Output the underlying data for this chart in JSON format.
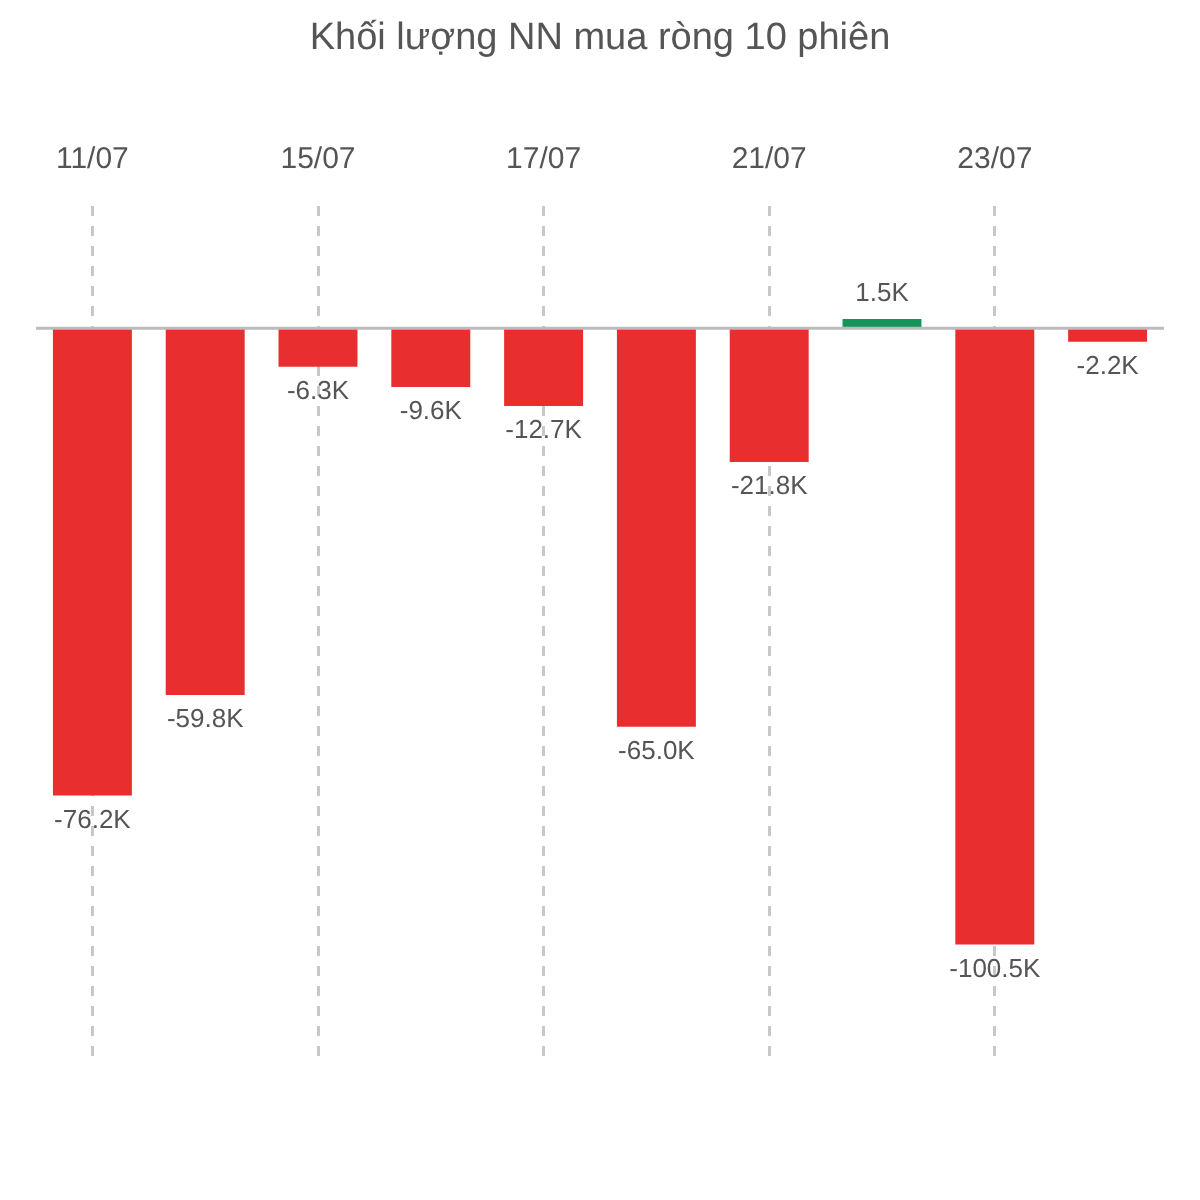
{
  "chart_data": {
    "type": "bar",
    "title": "Khối lượng NN mua ròng 10 phiên",
    "categories": [
      "11/07",
      null,
      "15/07",
      null,
      "17/07",
      null,
      "21/07",
      null,
      "23/07",
      null
    ],
    "values": [
      -76.2,
      -59.8,
      -6.3,
      -9.6,
      -12.7,
      -65.0,
      -21.8,
      1.5,
      -100.5,
      -2.2
    ],
    "colors": [
      "#e82e2e",
      "#e82e2e",
      "#e82e2e",
      "#e82e2e",
      "#e82e2e",
      "#e82e2e",
      "#e82e2e",
      "#16955a",
      "#e82e2e",
      "#e82e2e"
    ],
    "value_labels": [
      "-76.2K",
      "-59.8K",
      "-6.3K",
      "-9.6K",
      "-12.7K",
      "-65.0K",
      "-21.8K",
      "1.5K",
      "-100.5K",
      "-2.2K"
    ],
    "grid": "x",
    "legend": false
  }
}
